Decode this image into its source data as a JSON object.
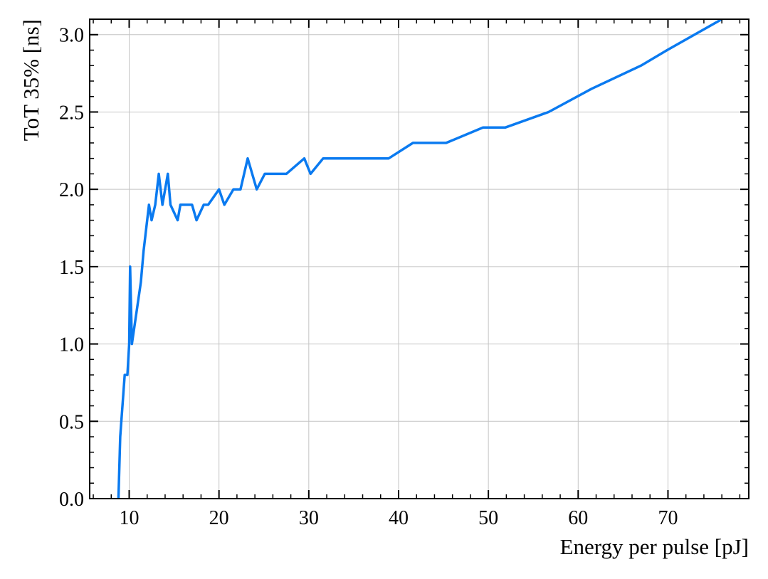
{
  "chart_data": {
    "type": "line",
    "title": "",
    "xlabel": "Energy per pulse [pJ]",
    "ylabel": "ToT 35% [ns]",
    "xlim": [
      5.6,
      79.0
    ],
    "ylim": [
      0.0,
      3.1
    ],
    "x_ticks": [
      10,
      20,
      30,
      40,
      50,
      60,
      70
    ],
    "x_tick_labels": [
      "10",
      "20",
      "30",
      "40",
      "50",
      "60",
      "70"
    ],
    "x_minor_step": 2,
    "y_ticks": [
      0.0,
      0.5,
      1.0,
      1.5,
      2.0,
      2.5,
      3.0
    ],
    "y_tick_labels": [
      "0.0",
      "0.5",
      "1.0",
      "1.5",
      "2.0",
      "2.5",
      "3.0"
    ],
    "y_minor_step": 0.1,
    "grid": true,
    "legend": "none",
    "series": [
      {
        "color": "#0a7af0",
        "x": [
          8.8,
          9.0,
          9.5,
          9.8,
          10.0,
          10.1,
          10.3,
          11.3,
          11.6,
          12.2,
          12.5,
          12.9,
          13.3,
          13.7,
          14.3,
          14.6,
          15.4,
          15.7,
          16.5,
          17.0,
          17.5,
          18.3,
          18.8,
          20.0,
          20.6,
          21.6,
          22.4,
          23.2,
          24.2,
          25.1,
          26.1,
          27.5,
          29.5,
          30.2,
          31.6,
          38.9,
          41.6,
          45.3,
          49.4,
          51.9,
          56.7,
          61.5,
          67.0,
          69.9,
          76.0
        ],
        "y": [
          0.0,
          0.4,
          0.8,
          0.8,
          1.0,
          1.5,
          1.0,
          1.4,
          1.6,
          1.9,
          1.8,
          1.9,
          2.1,
          1.9,
          2.1,
          1.9,
          1.8,
          1.9,
          1.9,
          1.9,
          1.8,
          1.9,
          1.9,
          2.0,
          1.9,
          2.0,
          2.0,
          2.2,
          2.0,
          2.1,
          2.1,
          2.1,
          2.2,
          2.1,
          2.2,
          2.2,
          2.3,
          2.3,
          2.4,
          2.4,
          2.5,
          2.65,
          2.8,
          2.9,
          3.1
        ]
      }
    ]
  }
}
